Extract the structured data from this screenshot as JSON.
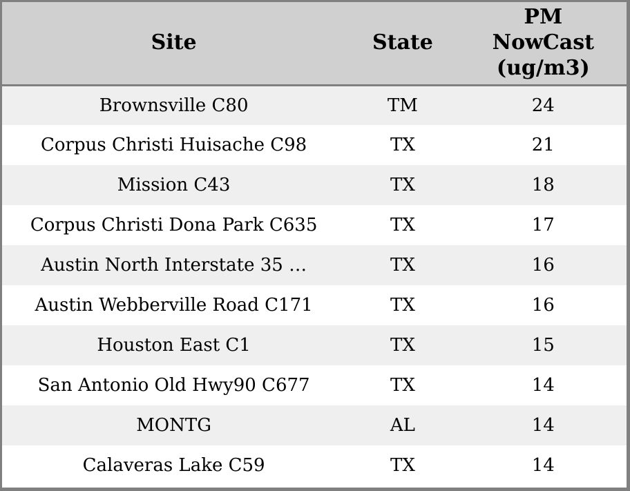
{
  "header": {
    "site_label": "Site",
    "state_label": "State",
    "pm_label_lines": [
      "PM",
      "NowCast",
      "(ug/m3)"
    ]
  },
  "chart_data": {
    "type": "table",
    "columns": [
      "Site",
      "State",
      "PM NowCast (ug/m3)"
    ],
    "rows": [
      [
        "Brownsville C80",
        "TM",
        24
      ],
      [
        "Corpus Christi Huisache C98",
        "TX",
        21
      ],
      [
        "Mission C43",
        "TX",
        18
      ],
      [
        "Corpus Christi Dona Park C635",
        "TX",
        17
      ],
      [
        "Austin North Interstate 35 …",
        "TX",
        16
      ],
      [
        "Austin Webberville Road C171",
        "TX",
        16
      ],
      [
        "Houston East C1",
        "TX",
        15
      ],
      [
        "San Antonio Old Hwy90 C677",
        "TX",
        14
      ],
      [
        "MONTG",
        "AL",
        14
      ],
      [
        "Calaveras Lake C59",
        "TX",
        14
      ]
    ]
  },
  "colors": {
    "header_bg": "#d0d0d0",
    "stripe_bg": "#efefef",
    "row_bg": "#ffffff",
    "border": "#808080",
    "text": "#000000"
  }
}
